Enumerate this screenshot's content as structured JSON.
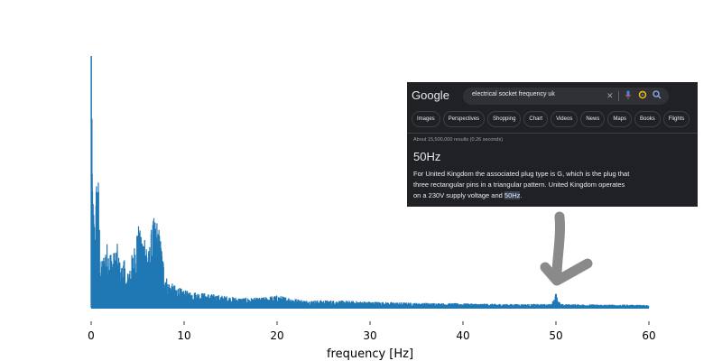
{
  "chart_data": {
    "type": "line",
    "title": "",
    "xlabel": "frequency [Hz]",
    "ylabel": "",
    "xlim": [
      0,
      60
    ],
    "xticks": [
      0,
      10,
      20,
      30,
      40,
      50,
      60
    ],
    "y_axis_visible": false,
    "grid": false,
    "color": "#1f77b4",
    "series": [
      {
        "points": [
          [
            0,
            1.0
          ],
          [
            0.2,
            0.45
          ],
          [
            0.4,
            0.35
          ],
          [
            0.6,
            0.57
          ],
          [
            0.8,
            0.52
          ],
          [
            1.0,
            0.18
          ],
          [
            1.3,
            0.21
          ],
          [
            1.6,
            0.27
          ],
          [
            2.0,
            0.24
          ],
          [
            2.4,
            0.22
          ],
          [
            2.8,
            0.26
          ],
          [
            3.2,
            0.16
          ],
          [
            3.5,
            0.21
          ],
          [
            3.8,
            0.12
          ],
          [
            4.2,
            0.19
          ],
          [
            4.6,
            0.24
          ],
          [
            5.0,
            0.36
          ],
          [
            5.4,
            0.28
          ],
          [
            5.8,
            0.32
          ],
          [
            6.2,
            0.23
          ],
          [
            6.6,
            0.35
          ],
          [
            7.0,
            0.37
          ],
          [
            7.4,
            0.3
          ],
          [
            7.8,
            0.19
          ],
          [
            8.2,
            0.11
          ],
          [
            9.0,
            0.09
          ],
          [
            10.0,
            0.07
          ],
          [
            12.0,
            0.06
          ],
          [
            14.0,
            0.05
          ],
          [
            16.0,
            0.04
          ],
          [
            18.0,
            0.04
          ],
          [
            20.0,
            0.05
          ],
          [
            23.0,
            0.03
          ],
          [
            26.0,
            0.03
          ],
          [
            30.0,
            0.025
          ],
          [
            35.0,
            0.02
          ],
          [
            40.0,
            0.018
          ],
          [
            45.0,
            0.015
          ],
          [
            49.5,
            0.015
          ],
          [
            50.0,
            0.055
          ],
          [
            50.5,
            0.015
          ],
          [
            55.0,
            0.013
          ],
          [
            60.0,
            0.012
          ]
        ]
      }
    ]
  },
  "search": {
    "logo": "Google",
    "query": "electrical socket frequency uk",
    "tabs": [
      "Images",
      "Perspectives",
      "Shopping",
      "Chart",
      "Videos",
      "News",
      "Maps",
      "Books",
      "Flights"
    ],
    "stats": "About 15,500,000 results (0.26 seconds)",
    "answer": "50Hz",
    "snippet_line1": "For United Kingdom the associated plug type is G, which is the plug that",
    "snippet_line2": "three rectangular pins in a triangular pattern. United Kingdom operates",
    "snippet_line3_pre": "on a 230V supply voltage and ",
    "snippet_highlight": "50Hz",
    "snippet_line3_post": "."
  },
  "icons": {
    "clear": "close-icon",
    "voice": "microphone-icon",
    "lens": "lens-icon",
    "search": "search-icon",
    "arrow": "arrow-down-icon"
  }
}
